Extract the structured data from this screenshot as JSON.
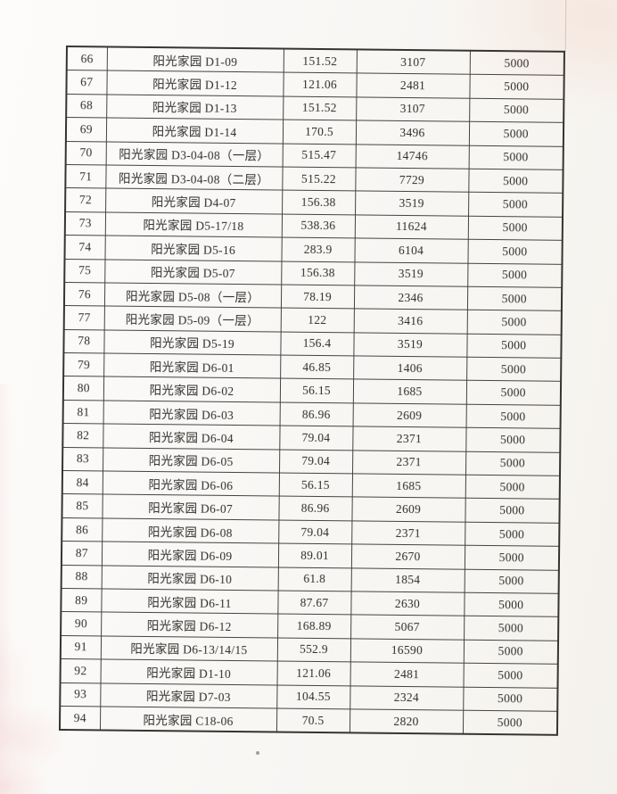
{
  "table": {
    "rows": [
      {
        "no": "66",
        "name": "阳光家园 D1-09",
        "area": "151.52",
        "amount": "3107",
        "fee": "5000"
      },
      {
        "no": "67",
        "name": "阳光家园 D1-12",
        "area": "121.06",
        "amount": "2481",
        "fee": "5000"
      },
      {
        "no": "68",
        "name": "阳光家园 D1-13",
        "area": "151.52",
        "amount": "3107",
        "fee": "5000"
      },
      {
        "no": "69",
        "name": "阳光家园 D1-14",
        "area": "170.5",
        "amount": "3496",
        "fee": "5000"
      },
      {
        "no": "70",
        "name": "阳光家园 D3-04-08（一层）",
        "area": "515.47",
        "amount": "14746",
        "fee": "5000"
      },
      {
        "no": "71",
        "name": "阳光家园 D3-04-08（二层）",
        "area": "515.22",
        "amount": "7729",
        "fee": "5000"
      },
      {
        "no": "72",
        "name": "阳光家园 D4-07",
        "area": "156.38",
        "amount": "3519",
        "fee": "5000"
      },
      {
        "no": "73",
        "name": "阳光家园 D5-17/18",
        "area": "538.36",
        "amount": "11624",
        "fee": "5000"
      },
      {
        "no": "74",
        "name": "阳光家园 D5-16",
        "area": "283.9",
        "amount": "6104",
        "fee": "5000"
      },
      {
        "no": "75",
        "name": "阳光家园 D5-07",
        "area": "156.38",
        "amount": "3519",
        "fee": "5000"
      },
      {
        "no": "76",
        "name": "阳光家园 D5-08（一层）",
        "area": "78.19",
        "amount": "2346",
        "fee": "5000"
      },
      {
        "no": "77",
        "name": "阳光家园 D5-09（一层）",
        "area": "122",
        "amount": "3416",
        "fee": "5000"
      },
      {
        "no": "78",
        "name": "阳光家园 D5-19",
        "area": "156.4",
        "amount": "3519",
        "fee": "5000"
      },
      {
        "no": "79",
        "name": "阳光家园 D6-01",
        "area": "46.85",
        "amount": "1406",
        "fee": "5000"
      },
      {
        "no": "80",
        "name": "阳光家园 D6-02",
        "area": "56.15",
        "amount": "1685",
        "fee": "5000"
      },
      {
        "no": "81",
        "name": "阳光家园 D6-03",
        "area": "86.96",
        "amount": "2609",
        "fee": "5000"
      },
      {
        "no": "82",
        "name": "阳光家园 D6-04",
        "area": "79.04",
        "amount": "2371",
        "fee": "5000"
      },
      {
        "no": "83",
        "name": "阳光家园 D6-05",
        "area": "79.04",
        "amount": "2371",
        "fee": "5000"
      },
      {
        "no": "84",
        "name": "阳光家园 D6-06",
        "area": "56.15",
        "amount": "1685",
        "fee": "5000"
      },
      {
        "no": "85",
        "name": "阳光家园 D6-07",
        "area": "86.96",
        "amount": "2609",
        "fee": "5000"
      },
      {
        "no": "86",
        "name": "阳光家园 D6-08",
        "area": "79.04",
        "amount": "2371",
        "fee": "5000"
      },
      {
        "no": "87",
        "name": "阳光家园 D6-09",
        "area": "89.01",
        "amount": "2670",
        "fee": "5000"
      },
      {
        "no": "88",
        "name": "阳光家园 D6-10",
        "area": "61.8",
        "amount": "1854",
        "fee": "5000"
      },
      {
        "no": "89",
        "name": "阳光家园 D6-11",
        "area": "87.67",
        "amount": "2630",
        "fee": "5000"
      },
      {
        "no": "90",
        "name": "阳光家园 D6-12",
        "area": "168.89",
        "amount": "5067",
        "fee": "5000"
      },
      {
        "no": "91",
        "name": "阳光家园 D6-13/14/15",
        "area": "552.9",
        "amount": "16590",
        "fee": "5000"
      },
      {
        "no": "92",
        "name": "阳光家园 D1-10",
        "area": "121.06",
        "amount": "2481",
        "fee": "5000"
      },
      {
        "no": "93",
        "name": "阳光家园 D7-03",
        "area": "104.55",
        "amount": "2324",
        "fee": "5000"
      },
      {
        "no": "94",
        "name": "阳光家园 C18-06",
        "area": "70.5",
        "amount": "2820",
        "fee": "5000"
      }
    ]
  },
  "colors": {
    "paper": "#f8f6f3",
    "grid_line": "#454240",
    "ink": "#2f2d2a",
    "corner_tint": "#f2cdbc"
  }
}
